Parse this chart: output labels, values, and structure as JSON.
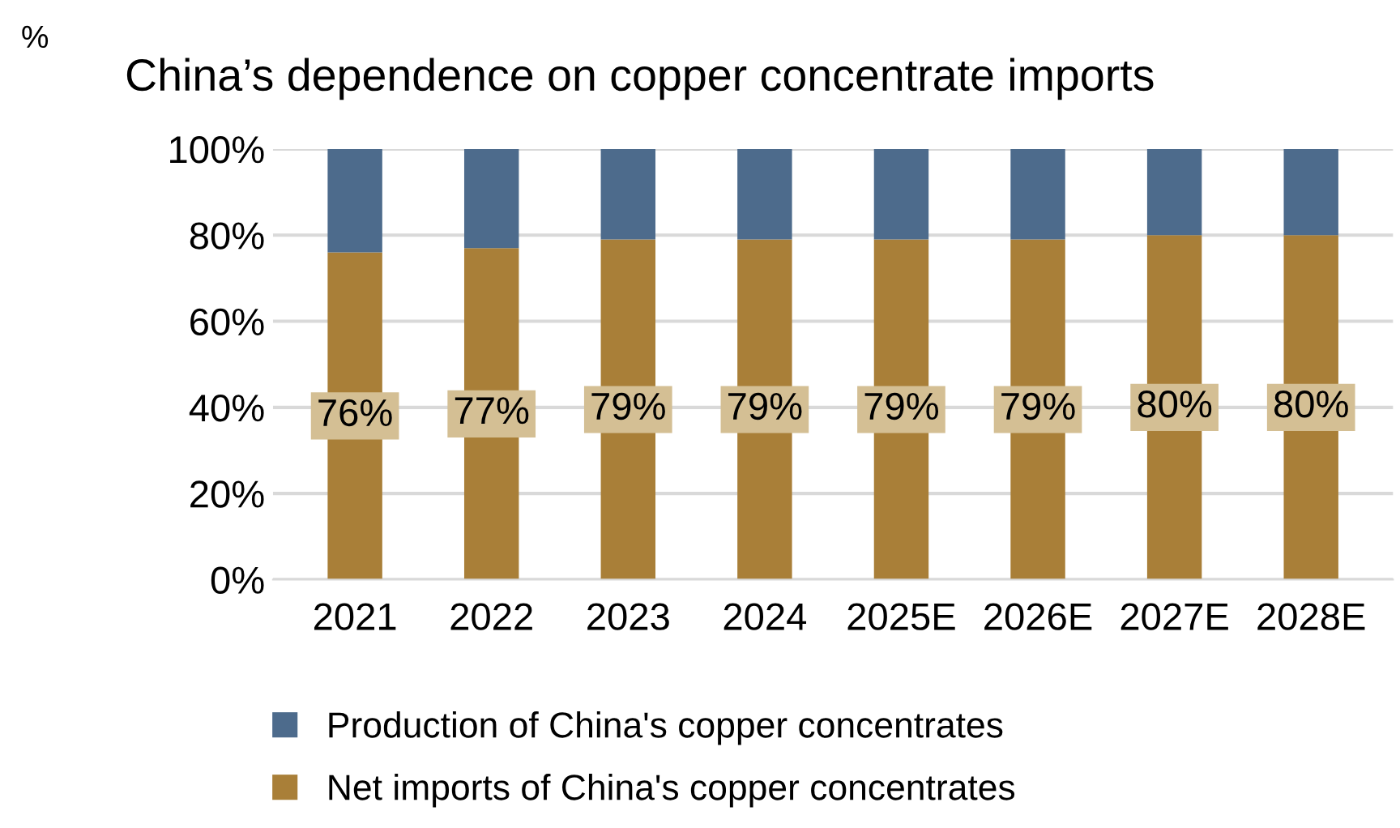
{
  "chart_data": {
    "type": "bar",
    "title": "China’s dependence on copper concentrate imports",
    "annotations": [
      "%"
    ],
    "categories": [
      "2021",
      "2022",
      "2023",
      "2024",
      "2025E",
      "2026E",
      "2027E",
      "2028E"
    ],
    "series": [
      {
        "name": "Net imports of China's copper concentrates",
        "color": "#a97f38",
        "values": [
          76,
          77,
          79,
          79,
          79,
          79,
          80,
          80
        ],
        "value_labels": [
          "76%",
          "77%",
          "79%",
          "79%",
          "79%",
          "79%",
          "80%",
          "80%"
        ]
      },
      {
        "name": "Production of China's copper concentrates",
        "color": "#4d6b8c",
        "values": [
          24,
          23,
          21,
          21,
          21,
          21,
          20,
          20
        ]
      }
    ],
    "stacked": true,
    "ylim": [
      0,
      100
    ],
    "yticks": [
      {
        "value": 0,
        "label": "0%"
      },
      {
        "value": 20,
        "label": "20%"
      },
      {
        "value": 40,
        "label": "40%"
      },
      {
        "value": 60,
        "label": "60%"
      },
      {
        "value": 80,
        "label": "80%"
      },
      {
        "value": 100,
        "label": "100%"
      }
    ],
    "grid": "y",
    "legend": "bottom"
  }
}
